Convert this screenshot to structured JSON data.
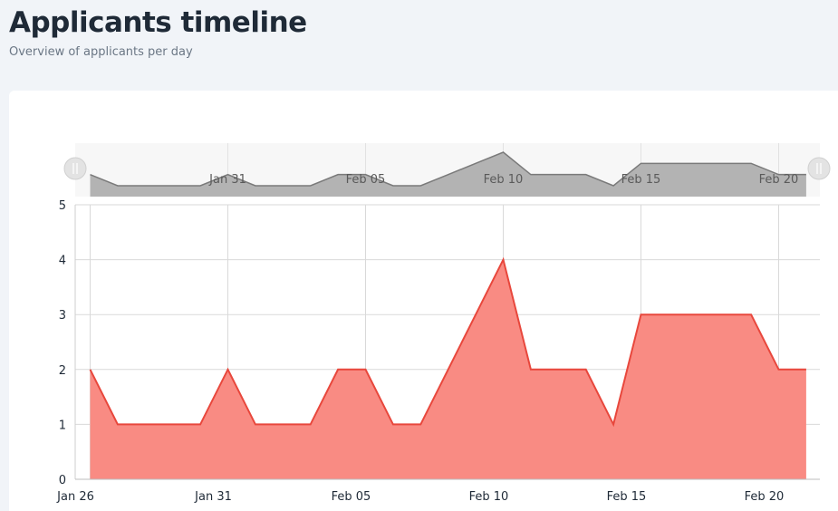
{
  "header": {
    "title": "Applicants timeline",
    "subtitle": "Overview of applicants per day"
  },
  "colors": {
    "area_fill": "#f98b83",
    "area_stroke": "#e8473c",
    "navigator_fill": "#b3b3b3",
    "navigator_stroke": "#7a7a7a",
    "grid": "#d9d9d9"
  },
  "chart_data": {
    "type": "area",
    "title": "",
    "xlabel": "",
    "ylabel": "",
    "x": [
      "Jan 26",
      "Jan 27",
      "Jan 28",
      "Jan 29",
      "Jan 30",
      "Jan 31",
      "Feb 01",
      "Feb 02",
      "Feb 03",
      "Feb 04",
      "Feb 05",
      "Feb 06",
      "Feb 07",
      "Feb 08",
      "Feb 09",
      "Feb 10",
      "Feb 11",
      "Feb 12",
      "Feb 13",
      "Feb 14",
      "Feb 15",
      "Feb 16",
      "Feb 17",
      "Feb 18",
      "Feb 19",
      "Feb 20",
      "Feb 21"
    ],
    "series": [
      {
        "values": [
          2,
          1,
          1,
          1,
          1,
          2,
          1,
          1,
          1,
          2,
          2,
          1,
          1,
          2,
          3,
          4,
          2,
          2,
          2,
          1,
          3,
          3,
          3,
          3,
          3,
          2,
          2
        ]
      }
    ],
    "x_ticks": [
      "Jan 26",
      "Jan 31",
      "Feb 05",
      "Feb 10",
      "Feb 15",
      "Feb 20"
    ],
    "navigator_ticks": [
      "Jan 31",
      "Feb 05",
      "Feb 10",
      "Feb 15",
      "Feb 20"
    ],
    "y_ticks": [
      "0",
      "1",
      "2",
      "3",
      "4",
      "5"
    ],
    "ylim": [
      0,
      5
    ],
    "grid": true,
    "navigator": true
  }
}
